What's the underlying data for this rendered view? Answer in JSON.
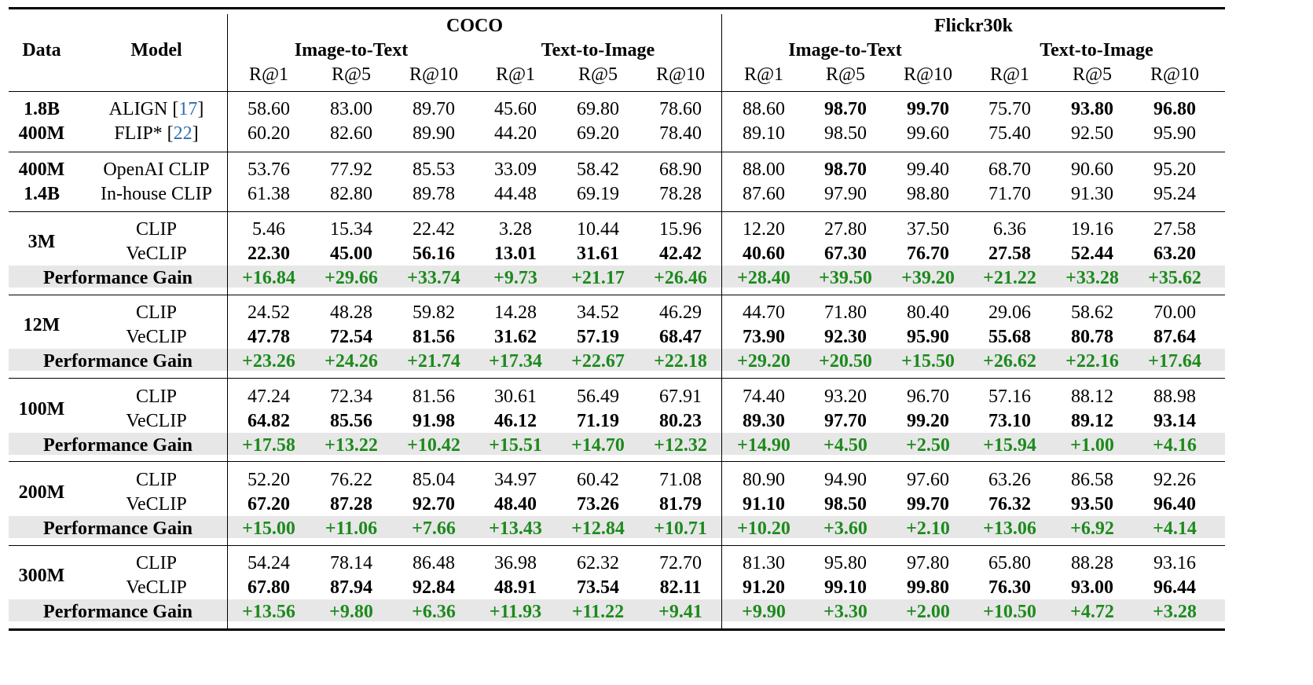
{
  "colors": {
    "gain_green": "#1c8a1c",
    "citation_blue": "#2f6fb0",
    "gain_band": "#e7e7e7"
  },
  "header": {
    "data": "Data",
    "model": "Model",
    "coco": "COCO",
    "flickr": "Flickr30k",
    "i2t": "Image-to-Text",
    "t2i": "Text-to-Image",
    "metrics": [
      "R@1",
      "R@5",
      "R@10",
      "R@1",
      "R@5",
      "R@10",
      "R@1",
      "R@5",
      "R@10",
      "R@1",
      "R@5",
      "R@10"
    ]
  },
  "baselines": [
    {
      "rows": [
        {
          "data": "1.8B",
          "model": "ALIGN",
          "ref": "17",
          "values": [
            "58.60",
            "83.00",
            "89.70",
            "45.60",
            "69.80",
            "78.60",
            "88.60",
            "98.70",
            "99.70",
            "75.70",
            "93.80",
            "96.80"
          ],
          "bold": [
            7,
            8,
            10,
            11
          ]
        },
        {
          "data": "400M",
          "model": "FLIP*",
          "ref": "22",
          "values": [
            "60.20",
            "82.60",
            "89.90",
            "44.20",
            "69.20",
            "78.40",
            "89.10",
            "98.50",
            "99.60",
            "75.40",
            "92.50",
            "95.90"
          ],
          "bold": []
        }
      ]
    },
    {
      "rows": [
        {
          "data": "400M",
          "model": "OpenAI CLIP",
          "ref": "",
          "values": [
            "53.76",
            "77.92",
            "85.53",
            "33.09",
            "58.42",
            "68.90",
            "88.00",
            "98.70",
            "99.40",
            "68.70",
            "90.60",
            "95.20"
          ],
          "bold": [
            7
          ]
        },
        {
          "data": "1.4B",
          "model": "In-house CLIP",
          "ref": "",
          "values": [
            "61.38",
            "82.80",
            "89.78",
            "44.48",
            "69.19",
            "78.28",
            "87.60",
            "97.90",
            "98.80",
            "71.70",
            "91.30",
            "95.24"
          ],
          "bold": []
        }
      ]
    }
  ],
  "groups": [
    {
      "data": "3M",
      "clip_label": "CLIP",
      "veclip_label": "VeCLIP",
      "gain_label": "Performance Gain",
      "clip": [
        "5.46",
        "15.34",
        "22.42",
        "3.28",
        "10.44",
        "15.96",
        "12.20",
        "27.80",
        "37.50",
        "6.36",
        "19.16",
        "27.58"
      ],
      "veclip": [
        "22.30",
        "45.00",
        "56.16",
        "13.01",
        "31.61",
        "42.42",
        "40.60",
        "67.30",
        "76.70",
        "27.58",
        "52.44",
        "63.20"
      ],
      "gain": [
        "+16.84",
        "+29.66",
        "+33.74",
        "+9.73",
        "+21.17",
        "+26.46",
        "+28.40",
        "+39.50",
        "+39.20",
        "+21.22",
        "+33.28",
        "+35.62"
      ]
    },
    {
      "data": "12M",
      "clip_label": "CLIP",
      "veclip_label": "VeCLIP",
      "gain_label": "Performance Gain",
      "clip": [
        "24.52",
        "48.28",
        "59.82",
        "14.28",
        "34.52",
        "46.29",
        "44.70",
        "71.80",
        "80.40",
        "29.06",
        "58.62",
        "70.00"
      ],
      "veclip": [
        "47.78",
        "72.54",
        "81.56",
        "31.62",
        "57.19",
        "68.47",
        "73.90",
        "92.30",
        "95.90",
        "55.68",
        "80.78",
        "87.64"
      ],
      "gain": [
        "+23.26",
        "+24.26",
        "+21.74",
        "+17.34",
        "+22.67",
        "+22.18",
        "+29.20",
        "+20.50",
        "+15.50",
        "+26.62",
        "+22.16",
        "+17.64"
      ]
    },
    {
      "data": "100M",
      "clip_label": "CLIP",
      "veclip_label": "VeCLIP",
      "gain_label": "Performance Gain",
      "clip": [
        "47.24",
        "72.34",
        "81.56",
        "30.61",
        "56.49",
        "67.91",
        "74.40",
        "93.20",
        "96.70",
        "57.16",
        "88.12",
        "88.98"
      ],
      "veclip": [
        "64.82",
        "85.56",
        "91.98",
        "46.12",
        "71.19",
        "80.23",
        "89.30",
        "97.70",
        "99.20",
        "73.10",
        "89.12",
        "93.14"
      ],
      "gain": [
        "+17.58",
        "+13.22",
        "+10.42",
        "+15.51",
        "+14.70",
        "+12.32",
        "+14.90",
        "+4.50",
        "+2.50",
        "+15.94",
        "+1.00",
        "+4.16"
      ]
    },
    {
      "data": "200M",
      "clip_label": "CLIP",
      "veclip_label": "VeCLIP",
      "gain_label": "Performance Gain",
      "clip": [
        "52.20",
        "76.22",
        "85.04",
        "34.97",
        "60.42",
        "71.08",
        "80.90",
        "94.90",
        "97.60",
        "63.26",
        "86.58",
        "92.26"
      ],
      "veclip": [
        "67.20",
        "87.28",
        "92.70",
        "48.40",
        "73.26",
        "81.79",
        "91.10",
        "98.50",
        "99.70",
        "76.32",
        "93.50",
        "96.40"
      ],
      "gain": [
        "+15.00",
        "+11.06",
        "+7.66",
        "+13.43",
        "+12.84",
        "+10.71",
        "+10.20",
        "+3.60",
        "+2.10",
        "+13.06",
        "+6.92",
        "+4.14"
      ]
    },
    {
      "data": "300M",
      "clip_label": "CLIP",
      "veclip_label": "VeCLIP",
      "gain_label": "Performance Gain",
      "clip": [
        "54.24",
        "78.14",
        "86.48",
        "36.98",
        "62.32",
        "72.70",
        "81.30",
        "95.80",
        "97.80",
        "65.80",
        "88.28",
        "93.16"
      ],
      "veclip": [
        "67.80",
        "87.94",
        "92.84",
        "48.91",
        "73.54",
        "82.11",
        "91.20",
        "99.10",
        "99.80",
        "76.30",
        "93.00",
        "96.44"
      ],
      "gain": [
        "+13.56",
        "+9.80",
        "+6.36",
        "+11.93",
        "+11.22",
        "+9.41",
        "+9.90",
        "+3.30",
        "+2.00",
        "+10.50",
        "+4.72",
        "+3.28"
      ]
    }
  ]
}
